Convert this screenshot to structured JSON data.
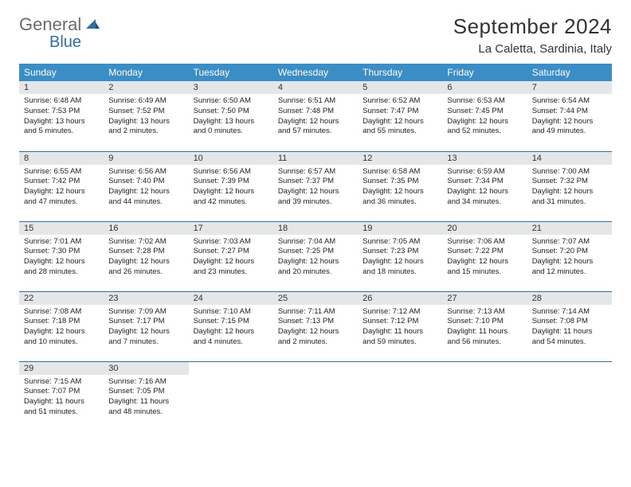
{
  "logo": {
    "part1": "General",
    "part2": "Blue"
  },
  "title": "September 2024",
  "location": "La Caletta, Sardinia, Italy",
  "colors": {
    "header_bg": "#3b8dc6",
    "header_text": "#ffffff",
    "daynum_bg": "#e4e6e8",
    "row_border": "#2f6fa8",
    "logo_gray": "#6b6b6b",
    "logo_blue": "#2f6fa8"
  },
  "weekdays": [
    "Sunday",
    "Monday",
    "Tuesday",
    "Wednesday",
    "Thursday",
    "Friday",
    "Saturday"
  ],
  "weeks": [
    [
      {
        "n": "1",
        "sr": "Sunrise: 6:48 AM",
        "ss": "Sunset: 7:53 PM",
        "d1": "Daylight: 13 hours",
        "d2": "and 5 minutes."
      },
      {
        "n": "2",
        "sr": "Sunrise: 6:49 AM",
        "ss": "Sunset: 7:52 PM",
        "d1": "Daylight: 13 hours",
        "d2": "and 2 minutes."
      },
      {
        "n": "3",
        "sr": "Sunrise: 6:50 AM",
        "ss": "Sunset: 7:50 PM",
        "d1": "Daylight: 13 hours",
        "d2": "and 0 minutes."
      },
      {
        "n": "4",
        "sr": "Sunrise: 6:51 AM",
        "ss": "Sunset: 7:48 PM",
        "d1": "Daylight: 12 hours",
        "d2": "and 57 minutes."
      },
      {
        "n": "5",
        "sr": "Sunrise: 6:52 AM",
        "ss": "Sunset: 7:47 PM",
        "d1": "Daylight: 12 hours",
        "d2": "and 55 minutes."
      },
      {
        "n": "6",
        "sr": "Sunrise: 6:53 AM",
        "ss": "Sunset: 7:45 PM",
        "d1": "Daylight: 12 hours",
        "d2": "and 52 minutes."
      },
      {
        "n": "7",
        "sr": "Sunrise: 6:54 AM",
        "ss": "Sunset: 7:44 PM",
        "d1": "Daylight: 12 hours",
        "d2": "and 49 minutes."
      }
    ],
    [
      {
        "n": "8",
        "sr": "Sunrise: 6:55 AM",
        "ss": "Sunset: 7:42 PM",
        "d1": "Daylight: 12 hours",
        "d2": "and 47 minutes."
      },
      {
        "n": "9",
        "sr": "Sunrise: 6:56 AM",
        "ss": "Sunset: 7:40 PM",
        "d1": "Daylight: 12 hours",
        "d2": "and 44 minutes."
      },
      {
        "n": "10",
        "sr": "Sunrise: 6:56 AM",
        "ss": "Sunset: 7:39 PM",
        "d1": "Daylight: 12 hours",
        "d2": "and 42 minutes."
      },
      {
        "n": "11",
        "sr": "Sunrise: 6:57 AM",
        "ss": "Sunset: 7:37 PM",
        "d1": "Daylight: 12 hours",
        "d2": "and 39 minutes."
      },
      {
        "n": "12",
        "sr": "Sunrise: 6:58 AM",
        "ss": "Sunset: 7:35 PM",
        "d1": "Daylight: 12 hours",
        "d2": "and 36 minutes."
      },
      {
        "n": "13",
        "sr": "Sunrise: 6:59 AM",
        "ss": "Sunset: 7:34 PM",
        "d1": "Daylight: 12 hours",
        "d2": "and 34 minutes."
      },
      {
        "n": "14",
        "sr": "Sunrise: 7:00 AM",
        "ss": "Sunset: 7:32 PM",
        "d1": "Daylight: 12 hours",
        "d2": "and 31 minutes."
      }
    ],
    [
      {
        "n": "15",
        "sr": "Sunrise: 7:01 AM",
        "ss": "Sunset: 7:30 PM",
        "d1": "Daylight: 12 hours",
        "d2": "and 28 minutes."
      },
      {
        "n": "16",
        "sr": "Sunrise: 7:02 AM",
        "ss": "Sunset: 7:28 PM",
        "d1": "Daylight: 12 hours",
        "d2": "and 26 minutes."
      },
      {
        "n": "17",
        "sr": "Sunrise: 7:03 AM",
        "ss": "Sunset: 7:27 PM",
        "d1": "Daylight: 12 hours",
        "d2": "and 23 minutes."
      },
      {
        "n": "18",
        "sr": "Sunrise: 7:04 AM",
        "ss": "Sunset: 7:25 PM",
        "d1": "Daylight: 12 hours",
        "d2": "and 20 minutes."
      },
      {
        "n": "19",
        "sr": "Sunrise: 7:05 AM",
        "ss": "Sunset: 7:23 PM",
        "d1": "Daylight: 12 hours",
        "d2": "and 18 minutes."
      },
      {
        "n": "20",
        "sr": "Sunrise: 7:06 AM",
        "ss": "Sunset: 7:22 PM",
        "d1": "Daylight: 12 hours",
        "d2": "and 15 minutes."
      },
      {
        "n": "21",
        "sr": "Sunrise: 7:07 AM",
        "ss": "Sunset: 7:20 PM",
        "d1": "Daylight: 12 hours",
        "d2": "and 12 minutes."
      }
    ],
    [
      {
        "n": "22",
        "sr": "Sunrise: 7:08 AM",
        "ss": "Sunset: 7:18 PM",
        "d1": "Daylight: 12 hours",
        "d2": "and 10 minutes."
      },
      {
        "n": "23",
        "sr": "Sunrise: 7:09 AM",
        "ss": "Sunset: 7:17 PM",
        "d1": "Daylight: 12 hours",
        "d2": "and 7 minutes."
      },
      {
        "n": "24",
        "sr": "Sunrise: 7:10 AM",
        "ss": "Sunset: 7:15 PM",
        "d1": "Daylight: 12 hours",
        "d2": "and 4 minutes."
      },
      {
        "n": "25",
        "sr": "Sunrise: 7:11 AM",
        "ss": "Sunset: 7:13 PM",
        "d1": "Daylight: 12 hours",
        "d2": "and 2 minutes."
      },
      {
        "n": "26",
        "sr": "Sunrise: 7:12 AM",
        "ss": "Sunset: 7:12 PM",
        "d1": "Daylight: 11 hours",
        "d2": "and 59 minutes."
      },
      {
        "n": "27",
        "sr": "Sunrise: 7:13 AM",
        "ss": "Sunset: 7:10 PM",
        "d1": "Daylight: 11 hours",
        "d2": "and 56 minutes."
      },
      {
        "n": "28",
        "sr": "Sunrise: 7:14 AM",
        "ss": "Sunset: 7:08 PM",
        "d1": "Daylight: 11 hours",
        "d2": "and 54 minutes."
      }
    ],
    [
      {
        "n": "29",
        "sr": "Sunrise: 7:15 AM",
        "ss": "Sunset: 7:07 PM",
        "d1": "Daylight: 11 hours",
        "d2": "and 51 minutes."
      },
      {
        "n": "30",
        "sr": "Sunrise: 7:16 AM",
        "ss": "Sunset: 7:05 PM",
        "d1": "Daylight: 11 hours",
        "d2": "and 48 minutes."
      },
      null,
      null,
      null,
      null,
      null
    ]
  ]
}
